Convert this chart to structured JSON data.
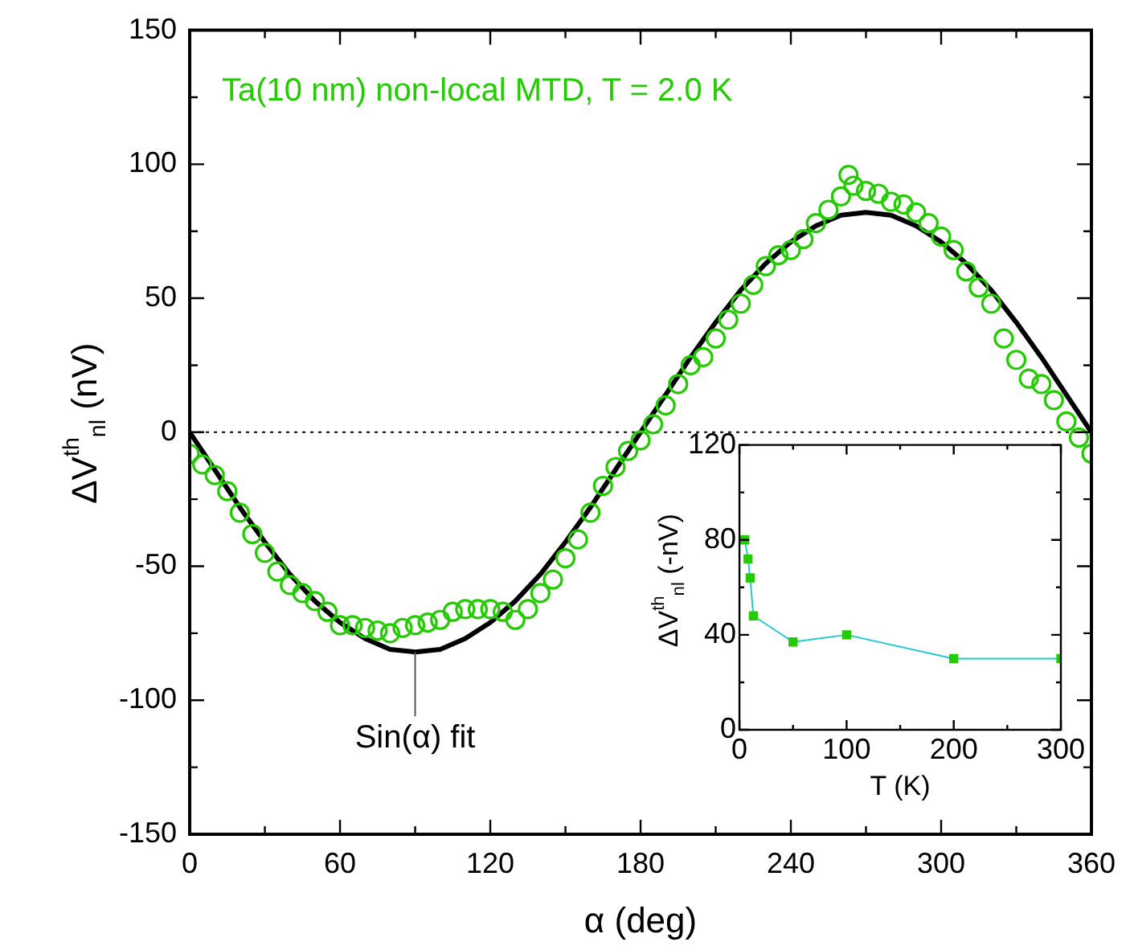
{
  "chart_data": [
    {
      "type": "scatter",
      "xlabel": "α (deg)",
      "ylabel": "ΔV$^{th}$$_{nl}$ (nV)",
      "xlim": [
        0,
        360
      ],
      "xticks": [
        0,
        {
          "value": 30,
          "label": null
        },
        60,
        {
          "value": 90,
          "label": null
        },
        120,
        {
          "value": 150,
          "label": null
        },
        180,
        {
          "value": 210,
          "label": null
        },
        240,
        {
          "value": 270,
          "label": null
        },
        300,
        {
          "value": 330,
          "label": null
        },
        360
      ],
      "ylim": [
        -150,
        150
      ],
      "yticks": [
        -150,
        {
          "value": -125,
          "label": null
        },
        -100,
        {
          "value": -75,
          "label": null
        },
        -50,
        {
          "value": -25,
          "label": null
        },
        0,
        {
          "value": 25,
          "label": null
        },
        50,
        {
          "value": 75,
          "label": null
        },
        100,
        {
          "value": 125,
          "label": null
        },
        150
      ],
      "grid": false,
      "legend": false,
      "annotations": [
        "Ta(10 nm) non-local MTD, T = 2.0 K",
        {
          "text": "Sin(α) fit",
          "x": 90,
          "y": -82
        }
      ],
      "ref_lines": [
        {
          "axis": "y",
          "value": 0,
          "line_style": "dotted",
          "color": "#000000"
        }
      ],
      "series": [
        {
          "marker": "circle",
          "color": "#22cc00",
          "x": [
            0,
            5,
            10,
            15,
            20,
            25,
            30,
            35,
            40,
            45,
            50,
            55,
            60,
            65,
            70,
            75,
            80,
            85,
            90,
            95,
            100,
            105,
            110,
            115,
            120,
            125,
            130,
            135,
            140,
            145,
            150,
            155,
            160,
            165,
            170,
            175,
            180,
            185,
            190,
            195,
            200,
            205,
            210,
            215,
            220,
            225,
            230,
            235,
            240,
            245,
            250,
            255,
            260,
            263,
            265,
            270,
            275,
            280,
            285,
            290,
            295,
            300,
            305,
            310,
            315,
            320,
            325,
            330,
            335,
            340,
            345,
            350,
            355,
            360
          ],
          "values": [
            -8,
            -12,
            -16,
            -22,
            -30,
            -38,
            -45,
            -52,
            -57,
            -60,
            -63,
            -67,
            -72,
            -72,
            -73,
            -74,
            -75,
            -73,
            -72,
            -71,
            -70,
            -67,
            -66,
            -66,
            -66,
            -67,
            -70,
            -66,
            -60,
            -55,
            -47,
            -40,
            -30,
            -20,
            -13,
            -7,
            -3,
            3,
            10,
            18,
            25,
            28,
            35,
            42,
            48,
            55,
            62,
            66,
            68,
            72,
            78,
            83,
            88,
            96,
            92,
            90,
            89,
            86,
            85,
            82,
            78,
            73,
            68,
            60,
            54,
            48,
            35,
            27,
            20,
            18,
            12,
            4,
            -2,
            -8
          ]
        },
        {
          "type": "line",
          "marker": "none",
          "line_style": "solid",
          "color": "#000000",
          "x": [
            0,
            10,
            20,
            30,
            40,
            50,
            60,
            70,
            80,
            90,
            100,
            110,
            120,
            130,
            140,
            150,
            160,
            170,
            180,
            190,
            200,
            210,
            220,
            230,
            240,
            250,
            260,
            270,
            280,
            290,
            300,
            310,
            320,
            330,
            340,
            350,
            360
          ],
          "values": [
            0,
            -14,
            -28,
            -41,
            -53,
            -63,
            -71,
            -77,
            -81,
            -82,
            -81,
            -77,
            -71,
            -63,
            -53,
            -41,
            -28,
            -14,
            0,
            14,
            28,
            41,
            53,
            63,
            71,
            77,
            81,
            82,
            81,
            77,
            71,
            63,
            53,
            41,
            28,
            14,
            0
          ]
        }
      ]
    },
    {
      "type": "line",
      "xlabel": "T (K)",
      "ylabel": "ΔV$^{th}$$_{nl}$ (-nV)",
      "xlim": [
        0,
        300
      ],
      "xticks": [
        0,
        {
          "value": 50,
          "label": null
        },
        100,
        {
          "value": 150,
          "label": null
        },
        200,
        {
          "value": 250,
          "label": null
        },
        300
      ],
      "ylim": [
        0,
        120
      ],
      "yticks": [
        0,
        {
          "value": 20,
          "label": null
        },
        40,
        {
          "value": 60,
          "label": null
        },
        80,
        {
          "value": 100,
          "label": null
        },
        120
      ],
      "grid": false,
      "legend": false,
      "series": [
        {
          "marker": "square",
          "line_style": "solid",
          "color": "#22cc00",
          "x": [
            5,
            8,
            10,
            13,
            50,
            100,
            200,
            300
          ],
          "values": [
            80,
            72,
            64,
            48,
            37,
            40,
            30,
            30
          ]
        }
      ]
    }
  ]
}
